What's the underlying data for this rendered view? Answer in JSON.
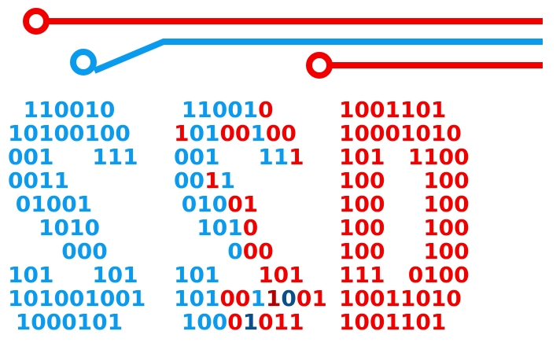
{
  "colors": {
    "blue": "#0a9aee",
    "red": "#f20000",
    "dark_red": "#b50000",
    "navy": "#0a4f8a"
  },
  "letter_s1": {
    "rows": [
      [
        {
          "t": "  110010",
          "c": "blue"
        }
      ],
      [
        {
          "t": "10100100",
          "c": "blue"
        }
      ],
      [
        {
          "t": "001     111",
          "c": "blue"
        }
      ],
      [
        {
          "t": "0011",
          "c": "blue"
        }
      ],
      [
        {
          "t": " 01001",
          "c": "blue"
        }
      ],
      [
        {
          "t": "    1010",
          "c": "blue"
        }
      ],
      [
        {
          "t": "       000",
          "c": "blue"
        }
      ],
      [
        {
          "t": "101     101",
          "c": "blue"
        }
      ],
      [
        {
          "t": "101001001",
          "c": "blue"
        }
      ],
      [
        {
          "t": " 1000101",
          "c": "blue"
        }
      ]
    ]
  },
  "letter_s2": {
    "rows": [
      [
        {
          "t": " 11001",
          "c": "blue"
        },
        {
          "t": "0",
          "c": "red"
        }
      ],
      [
        {
          "t": "1",
          "c": "red"
        },
        {
          "t": "01",
          "c": "blue"
        },
        {
          "t": "00",
          "c": "red"
        },
        {
          "t": "1",
          "c": "blue"
        },
        {
          "t": "00",
          "c": "red"
        }
      ],
      [
        {
          "t": "001     ",
          "c": "blue"
        },
        {
          "t": "11",
          "c": "blue"
        },
        {
          "t": "1",
          "c": "red"
        }
      ],
      [
        {
          "t": "00",
          "c": "blue"
        },
        {
          "t": "1",
          "c": "red"
        },
        {
          "t": "1",
          "c": "blue"
        }
      ],
      [
        {
          "t": " 010",
          "c": "blue"
        },
        {
          "t": "01",
          "c": "red"
        }
      ],
      [
        {
          "t": "   101",
          "c": "blue"
        },
        {
          "t": "0",
          "c": "red"
        }
      ],
      [
        {
          "t": "       0",
          "c": "blue"
        },
        {
          "t": "00",
          "c": "red"
        }
      ],
      [
        {
          "t": "101     ",
          "c": "blue"
        },
        {
          "t": "101",
          "c": "red"
        }
      ],
      [
        {
          "t": "101",
          "c": "blue"
        },
        {
          "t": "00",
          "c": "red"
        },
        {
          "t": "1",
          "c": "blue"
        },
        {
          "t": "1",
          "c": "dark_red"
        },
        {
          "t": "0",
          "c": "navy"
        },
        {
          "t": "01",
          "c": "red"
        }
      ],
      [
        {
          "t": " 100",
          "c": "blue"
        },
        {
          "t": "0",
          "c": "red"
        },
        {
          "t": "1",
          "c": "navy"
        },
        {
          "t": "01",
          "c": "red"
        },
        {
          "t": "1",
          "c": "red"
        }
      ]
    ]
  },
  "letter_d": {
    "rows": [
      [
        {
          "t": "1001101",
          "c": "red"
        }
      ],
      [
        {
          "t": "10001010",
          "c": "red"
        }
      ],
      [
        {
          "t": "101   1100",
          "c": "red"
        }
      ],
      [
        {
          "t": "100     100",
          "c": "red"
        }
      ],
      [
        {
          "t": "100     100",
          "c": "red"
        }
      ],
      [
        {
          "t": "100     100",
          "c": "red"
        }
      ],
      [
        {
          "t": "100     100",
          "c": "red"
        }
      ],
      [
        {
          "t": "111   0100",
          "c": "red"
        }
      ],
      [
        {
          "t": "10011010",
          "c": "red"
        }
      ],
      [
        {
          "t": "1001101",
          "c": "red"
        }
      ]
    ]
  }
}
